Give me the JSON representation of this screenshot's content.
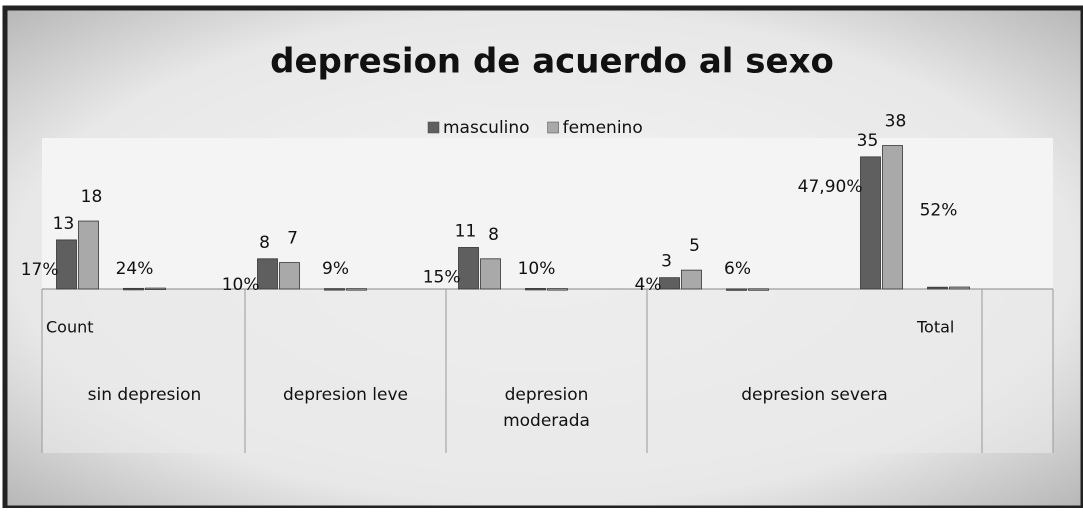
{
  "chart_data": {
    "type": "bar",
    "title": "depresion de acuerdo al sexo",
    "categories": [
      "Count",
      null,
      null,
      null,
      null,
      null,
      null,
      null,
      null,
      null,
      null,
      null,
      null,
      "Total",
      null
    ],
    "groups": [
      {
        "name": "sin depresion",
        "size": 3
      },
      {
        "name": "depresion leve",
        "size": 3
      },
      {
        "name": "depresion moderada",
        "size": 3
      },
      {
        "name": "depresion severa",
        "size": 5
      }
    ],
    "series": [
      {
        "name": "masculino",
        "color": "#5f5f5f",
        "values": [
          13,
          0.17,
          null,
          8,
          0.1,
          null,
          11,
          0.15,
          null,
          3,
          0.04,
          null,
          35,
          0.479,
          null
        ],
        "value_labels": [
          "13",
          "17%",
          null,
          "8",
          "10%",
          null,
          "11",
          "15%",
          null,
          "3",
          "4%",
          null,
          "35",
          "47,90%",
          null
        ]
      },
      {
        "name": "femenino",
        "color": "#a9a9a9",
        "values": [
          18,
          0.24,
          null,
          7,
          0.09,
          null,
          8,
          0.1,
          null,
          5,
          0.06,
          null,
          38,
          0.52,
          null
        ],
        "value_labels": [
          "18",
          "24%",
          null,
          "7",
          "9%",
          null,
          "8",
          "10%",
          null,
          "5",
          "6%",
          null,
          "38",
          "52%",
          null
        ]
      }
    ],
    "ylim": [
      0,
      40
    ],
    "legend": "top"
  }
}
